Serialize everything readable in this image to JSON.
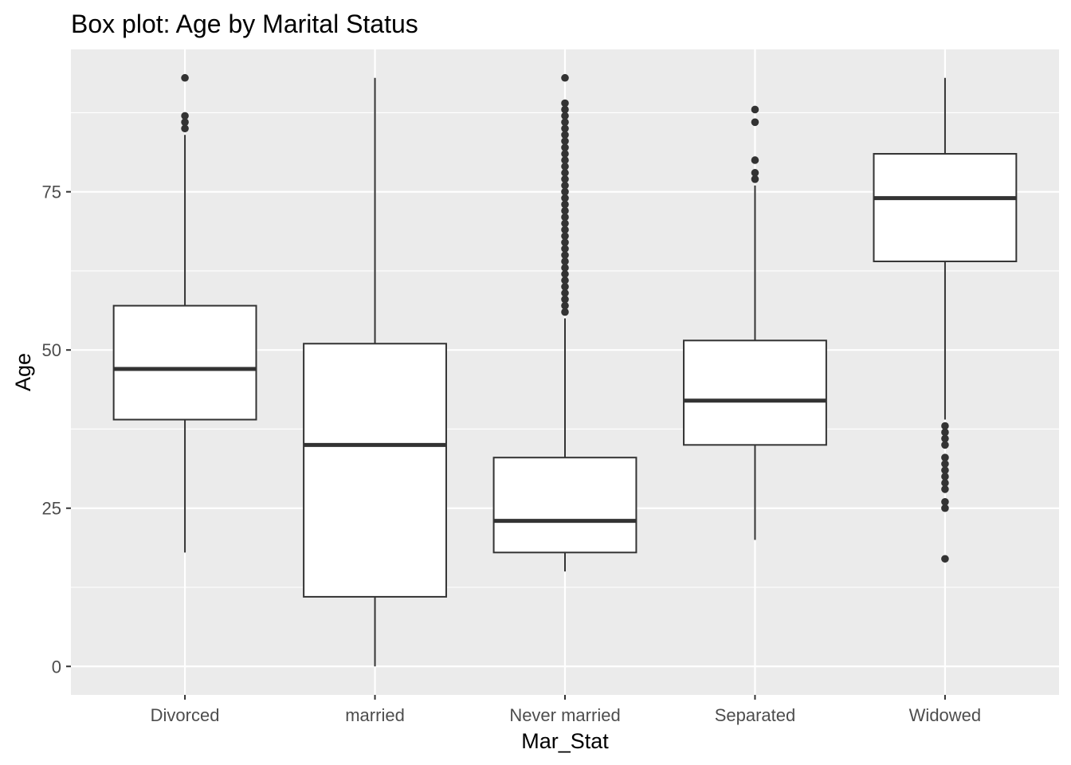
{
  "chart_data": {
    "type": "boxplot",
    "title": "Box plot: Age by Marital Status",
    "xlabel": "Mar_Stat",
    "ylabel": "Age",
    "ylim": [
      -4.5,
      97.5
    ],
    "yticks": [
      0,
      25,
      50,
      75
    ],
    "grid": true,
    "colors": {
      "panel": "#ebebeb",
      "grid": "#ffffff",
      "box_fill": "#ffffff",
      "box_line": "#333333",
      "tick_text": "#4d4d4d"
    },
    "categories": [
      "Divorced",
      "married",
      "Never married",
      "Separated",
      "Widowed"
    ],
    "boxes": [
      {
        "category": "Divorced",
        "lower_whisker": 18,
        "q1": 39,
        "median": 47,
        "q3": 57,
        "upper_whisker": 84,
        "outliers": [
          85,
          86,
          87,
          93
        ]
      },
      {
        "category": "married",
        "lower_whisker": 0,
        "q1": 11,
        "median": 35,
        "q3": 51,
        "upper_whisker": 93,
        "outliers": []
      },
      {
        "category": "Never married",
        "lower_whisker": 15,
        "q1": 18,
        "median": 23,
        "q3": 33,
        "upper_whisker": 55,
        "outliers": [
          56,
          57,
          58,
          59,
          60,
          61,
          62,
          63,
          64,
          65,
          66,
          67,
          68,
          69,
          70,
          71,
          72,
          73,
          74,
          75,
          76,
          77,
          78,
          79,
          80,
          81,
          82,
          83,
          84,
          85,
          86,
          87,
          88,
          89,
          93
        ]
      },
      {
        "category": "Separated",
        "lower_whisker": 20,
        "q1": 35,
        "median": 42,
        "q3": 51.5,
        "upper_whisker": 76,
        "outliers": [
          77,
          78,
          80,
          86,
          88
        ]
      },
      {
        "category": "Widowed",
        "lower_whisker": 39,
        "q1": 64,
        "median": 74,
        "q3": 81,
        "upper_whisker": 93,
        "outliers": [
          17,
          25,
          26,
          28,
          29,
          30,
          31,
          32,
          33,
          35,
          36,
          37,
          38
        ]
      }
    ]
  }
}
